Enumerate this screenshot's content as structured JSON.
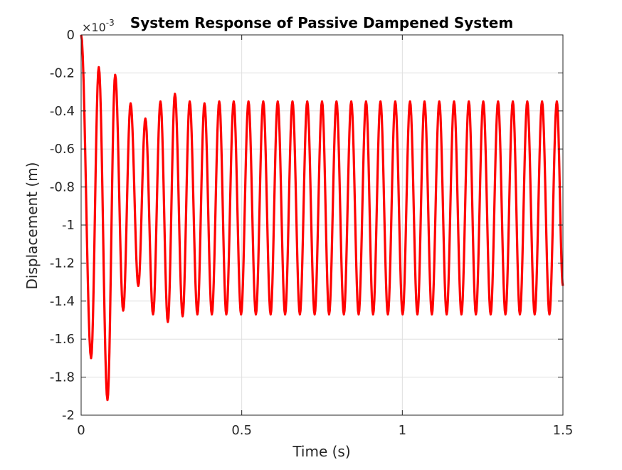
{
  "chart_data": {
    "type": "line",
    "title": "System Response of Passive Dampened System",
    "xlabel": "Time (s)",
    "ylabel": "Displacement (m)",
    "y_exponent_label": "×10",
    "y_exponent_power": "-3",
    "xlim": [
      0,
      1.5
    ],
    "ylim": [
      -2,
      0
    ],
    "y_scale_factor": 0.001,
    "grid": true,
    "x_ticks": [
      0,
      0.5,
      1,
      1.5
    ],
    "x_tick_labels": [
      "0",
      "0.5",
      "1",
      "1.5"
    ],
    "y_ticks": [
      0,
      -0.2,
      -0.4,
      -0.6,
      -0.8,
      -1,
      -1.2,
      -1.4,
      -1.6,
      -1.8,
      -2
    ],
    "y_tick_labels": [
      "0",
      "-0.2",
      "-0.4",
      "-0.6",
      "-0.8",
      "-1",
      "-1.2",
      "-1.4",
      "-1.6",
      "-1.8",
      "-2"
    ],
    "series": [
      {
        "color": "#ff0000",
        "x": [
          0.0,
          0.031,
          0.055,
          0.082,
          0.106,
          0.131,
          0.154,
          0.178,
          0.2,
          0.224,
          0.247,
          0.27,
          0.292,
          0.316,
          0.338,
          0.362,
          0.384,
          0.407,
          0.43,
          0.452,
          0.475,
          0.498,
          0.521,
          0.544,
          0.567,
          0.59,
          0.612,
          0.635,
          0.658,
          0.681,
          0.704,
          0.727,
          0.75,
          0.772,
          0.795,
          0.818,
          0.841,
          0.864,
          0.887,
          0.909,
          0.932,
          0.955,
          0.978,
          1.001,
          1.024,
          1.047,
          1.069,
          1.092,
          1.115,
          1.138,
          1.161,
          1.184,
          1.207,
          1.229,
          1.252,
          1.275,
          1.298,
          1.321,
          1.344,
          1.366,
          1.389,
          1.412,
          1.435,
          1.458,
          1.481,
          1.5
        ],
        "values": [
          0.0,
          -1.7,
          -0.17,
          -1.92,
          -0.21,
          -1.45,
          -0.36,
          -1.32,
          -0.44,
          -1.47,
          -0.35,
          -1.51,
          -0.31,
          -1.48,
          -0.35,
          -1.47,
          -0.36,
          -1.47,
          -0.35,
          -1.47,
          -0.35,
          -1.47,
          -0.35,
          -1.47,
          -0.35,
          -1.47,
          -0.35,
          -1.47,
          -0.35,
          -1.47,
          -0.35,
          -1.47,
          -0.35,
          -1.47,
          -0.35,
          -1.47,
          -0.35,
          -1.47,
          -0.35,
          -1.47,
          -0.35,
          -1.47,
          -0.35,
          -1.47,
          -0.35,
          -1.47,
          -0.35,
          -1.47,
          -0.35,
          -1.47,
          -0.35,
          -1.47,
          -0.35,
          -1.47,
          -0.35,
          -1.47,
          -0.35,
          -1.47,
          -0.35,
          -1.47,
          -0.35,
          -1.47,
          -0.35,
          -1.47,
          -0.35,
          -1.32
        ]
      }
    ]
  }
}
